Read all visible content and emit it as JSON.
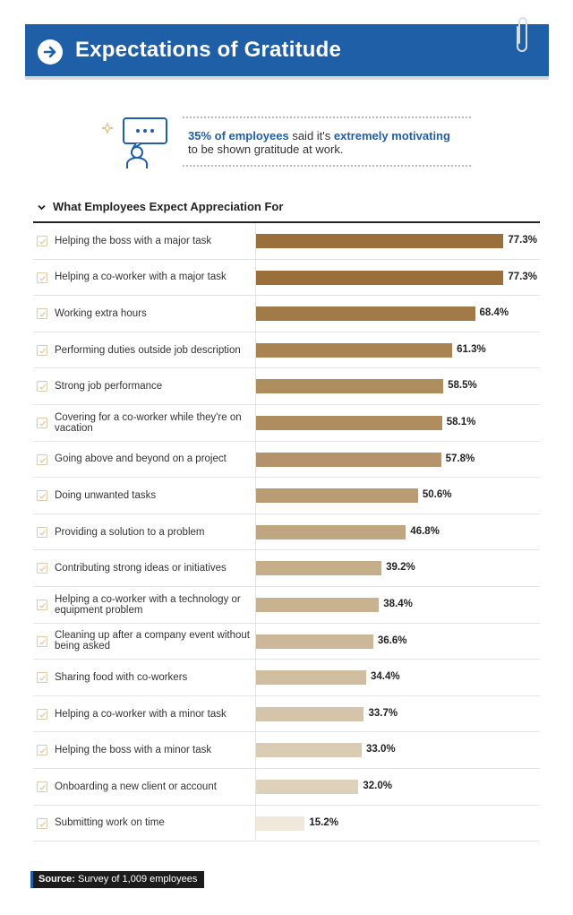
{
  "header": {
    "title": "Expectations of Gratitude",
    "icon": "arrow-right-circle-icon",
    "accent_color": "#1e5fa8"
  },
  "callout": {
    "highlight_1": "35% of employees",
    "text_1": " said it's ",
    "highlight_2": "extremely motivating",
    "text_2": "to be shown gratitude at work.",
    "icon": "person-speech-bubble-icon"
  },
  "section": {
    "title": "What Employees Expect Appreciation For"
  },
  "chart_data": {
    "type": "bar",
    "orientation": "horizontal",
    "title": "What Employees Expect Appreciation For",
    "xlim": [
      0,
      80
    ],
    "categories": [
      "Helping the boss with a major task",
      "Helping a co-worker with a major task",
      "Working extra hours",
      "Performing duties outside job description",
      "Strong job performance",
      "Covering for a co-worker while they're on vacation",
      "Going above and beyond on a project",
      "Doing unwanted tasks",
      "Providing a solution to a problem",
      "Contributing strong ideas or initiatives",
      "Helping a co-worker with a technology or equipment problem",
      "Cleaning up after a company event without being asked",
      "Sharing food with co-workers",
      "Helping a co-worker with a minor task",
      "Helping the boss with a minor task",
      "Onboarding a new client or account",
      "Submitting work on time"
    ],
    "values": [
      77.3,
      77.3,
      68.4,
      61.3,
      58.5,
      58.1,
      57.8,
      50.6,
      46.8,
      39.2,
      38.4,
      36.6,
      34.4,
      33.7,
      33.0,
      32.0,
      15.2
    ],
    "value_labels": [
      "77.3%",
      "77.3%",
      "68.4%",
      "61.3%",
      "58.5%",
      "58.1%",
      "57.8%",
      "50.6%",
      "46.8%",
      "39.2%",
      "38.4%",
      "36.6%",
      "34.4%",
      "33.7%",
      "33.0%",
      "32.0%",
      "15.2%"
    ],
    "colors": [
      "#9a6f3a",
      "#9a6f3a",
      "#a27a47",
      "#a98452",
      "#b08d5f",
      "#b08d5f",
      "#b4936a",
      "#b99b74",
      "#c0a680",
      "#c6ae8b",
      "#c9b290",
      "#ccb798",
      "#d1bea1",
      "#d5c4a9",
      "#dacbb3",
      "#dfd2bd",
      "#f0e8da"
    ]
  },
  "source": {
    "label": "Source:",
    "text": " Survey of 1,009 employees"
  }
}
